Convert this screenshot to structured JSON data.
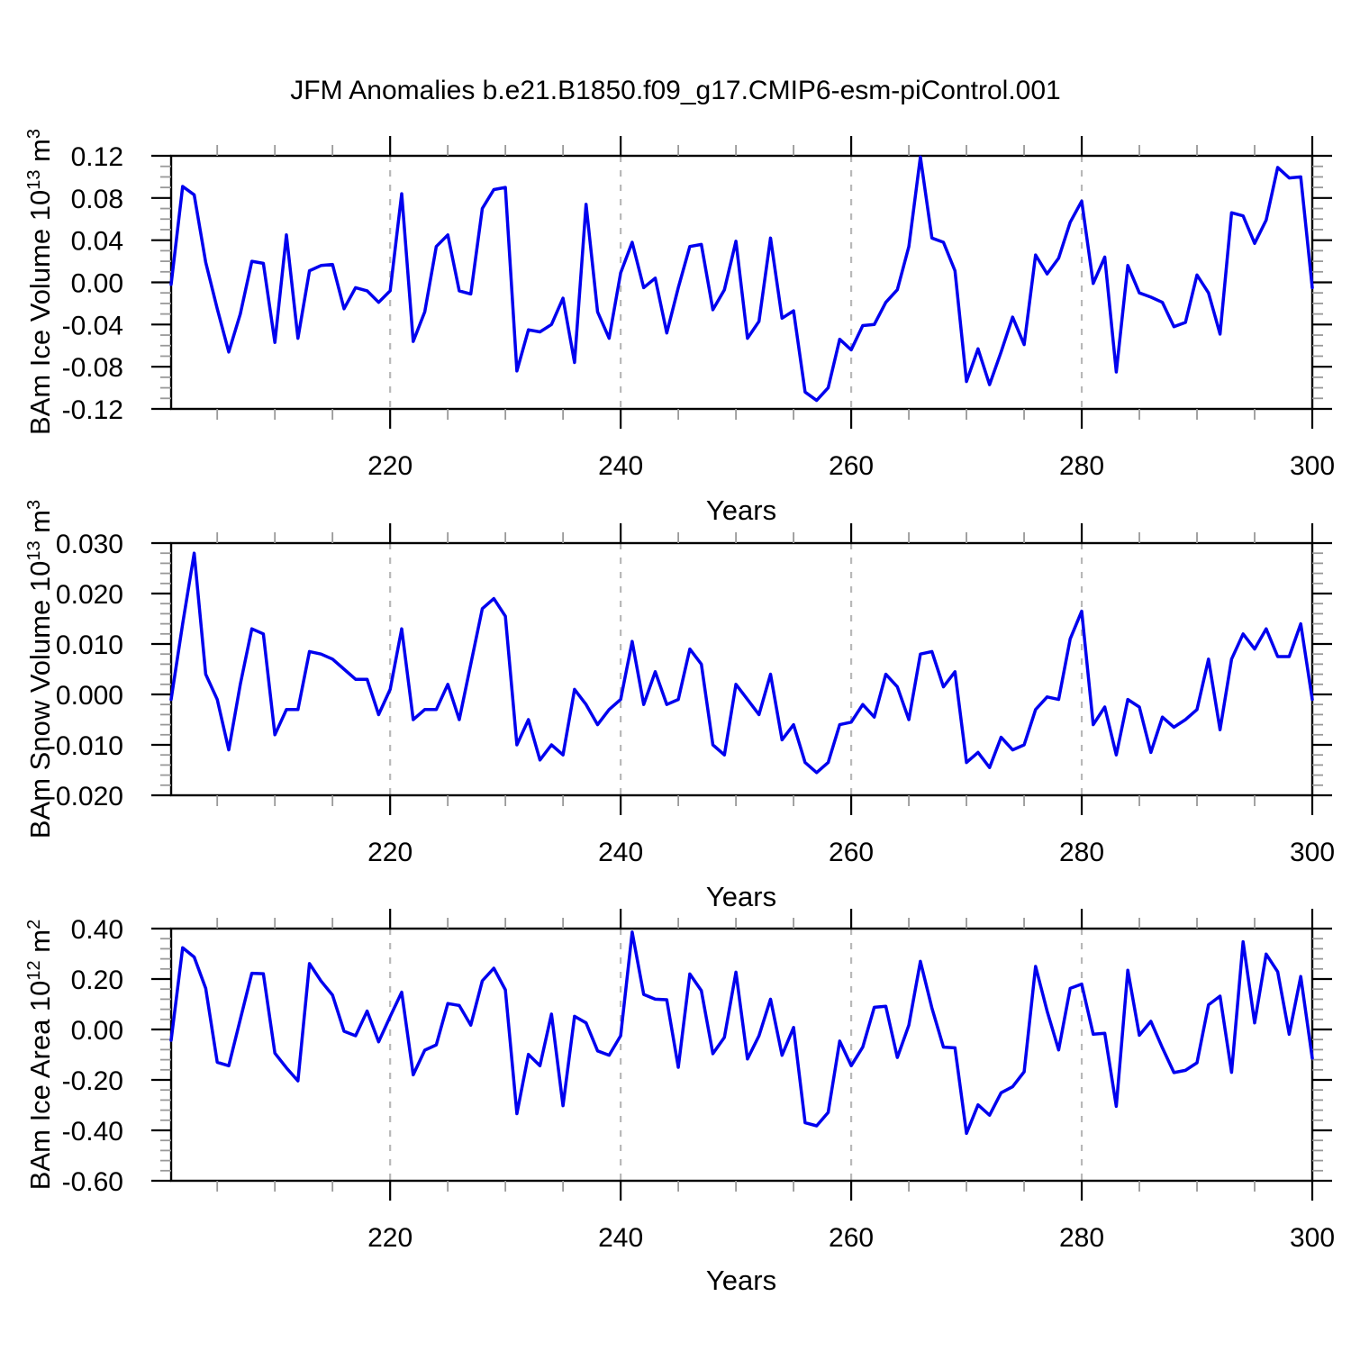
{
  "title": "JFM Anomalies b.e21.B1850.f09_g17.CMIP6-esm-piControl.001",
  "xlabel": "Years",
  "line_color": "#0000ee",
  "chart_data": [
    {
      "type": "line",
      "name": "BAm Ice Volume",
      "ylabel": {
        "prefix": "BAm Ice Volume 10",
        "exp": "13",
        "unit": " m",
        "unit_exp": "3"
      },
      "x_start": 201,
      "x_end": 300,
      "x_step": 1,
      "xticks": {
        "major": [
          220,
          240,
          260,
          280,
          300
        ],
        "labels": [
          "220",
          "240",
          "260",
          "280",
          "300"
        ],
        "minor_step": 5,
        "grid_years": [
          220,
          240,
          260,
          280
        ]
      },
      "ylim": [
        -0.12,
        0.12
      ],
      "yticks": {
        "major": [
          -0.12,
          -0.08,
          -0.04,
          0,
          0.04,
          0.08,
          0.12
        ],
        "labels": [
          "-0.12",
          "-0.08",
          "-0.04",
          "0.00",
          "0.04",
          "0.08",
          "0.12"
        ],
        "minor_step": 0.01
      },
      "values": [
        -0.002,
        0.091,
        0.083,
        0.019,
        -0.025,
        -0.066,
        -0.03,
        0.02,
        0.018,
        -0.057,
        0.045,
        -0.053,
        0.011,
        0.016,
        0.017,
        -0.025,
        -0.005,
        -0.008,
        -0.019,
        -0.008,
        0.084,
        -0.056,
        -0.028,
        0.034,
        0.045,
        -0.008,
        -0.011,
        0.07,
        0.088,
        0.09,
        -0.084,
        -0.045,
        -0.047,
        -0.04,
        -0.015,
        -0.076,
        0.074,
        -0.028,
        -0.053,
        0.009,
        0.038,
        -0.005,
        0.004,
        -0.048,
        -0.005,
        0.034,
        0.036,
        -0.026,
        -0.007,
        0.039,
        -0.053,
        -0.037,
        0.042,
        -0.034,
        -0.027,
        -0.104,
        -0.112,
        -0.1,
        -0.054,
        -0.064,
        -0.041,
        -0.04,
        -0.019,
        -0.007,
        0.034,
        0.119,
        0.042,
        0.038,
        0.011,
        -0.094,
        -0.063,
        -0.097,
        -0.066,
        -0.033,
        -0.059,
        0.026,
        0.008,
        0.023,
        0.057,
        0.077,
        -0.001,
        0.024,
        -0.085,
        0.016,
        -0.01,
        -0.014,
        -0.019,
        -0.042,
        -0.038,
        0.007,
        -0.01,
        -0.049,
        0.066,
        0.063,
        0.037,
        0.059,
        0.109,
        0.099,
        0.1,
        -0.005
      ]
    },
    {
      "type": "line",
      "name": "BAm Snow Volume",
      "ylabel": {
        "prefix": "BAm Snow Volume 10",
        "exp": "13",
        "unit": " m",
        "unit_exp": "3"
      },
      "x_start": 201,
      "x_end": 300,
      "x_step": 1,
      "xticks": {
        "major": [
          220,
          240,
          260,
          280,
          300
        ],
        "labels": [
          "220",
          "240",
          "260",
          "280",
          "300"
        ],
        "minor_step": 5,
        "grid_years": [
          220,
          240,
          260,
          280
        ]
      },
      "ylim": [
        -0.02,
        0.03
      ],
      "yticks": {
        "major": [
          -0.02,
          -0.01,
          0,
          0.01,
          0.02,
          0.03
        ],
        "labels": [
          "-0.020",
          "-0.010",
          "0.000",
          "0.010",
          "0.020",
          "0.030"
        ],
        "minor_step": 0.002
      },
      "values": [
        -0.001,
        0.014,
        0.028,
        0.004,
        -0.001,
        -0.011,
        0.002,
        0.013,
        0.012,
        -0.008,
        -0.003,
        -0.003,
        0.0085,
        0.008,
        0.007,
        0.005,
        0.003,
        0.003,
        -0.004,
        0.001,
        0.013,
        -0.005,
        -0.003,
        -0.003,
        0.002,
        -0.005,
        0.006,
        0.017,
        0.019,
        0.0155,
        -0.01,
        -0.005,
        -0.013,
        -0.01,
        -0.012,
        0.001,
        -0.002,
        -0.006,
        -0.003,
        -0.001,
        0.0105,
        -0.002,
        0.0045,
        -0.002,
        -0.001,
        0.009,
        0.006,
        -0.01,
        -0.012,
        0.002,
        -0.001,
        -0.004,
        0.004,
        -0.009,
        -0.006,
        -0.0135,
        -0.0155,
        -0.0135,
        -0.006,
        -0.0055,
        -0.002,
        -0.0045,
        0.004,
        0.0015,
        -0.005,
        0.008,
        0.0085,
        0.0015,
        0.0045,
        -0.0135,
        -0.0115,
        -0.0145,
        -0.0085,
        -0.011,
        -0.01,
        -0.003,
        -0.0005,
        -0.001,
        0.011,
        0.0165,
        -0.006,
        -0.0025,
        -0.012,
        -0.001,
        -0.0025,
        -0.0115,
        -0.0045,
        -0.0065,
        -0.005,
        -0.003,
        0.007,
        -0.007,
        0.007,
        0.012,
        0.009,
        0.013,
        0.0075,
        0.0075,
        0.014,
        -0.001
      ]
    },
    {
      "type": "line",
      "name": "BAm Ice Area",
      "ylabel": {
        "prefix": "BAm Ice Area 10",
        "exp": "12",
        "unit": " m",
        "unit_exp": "2"
      },
      "x_start": 201,
      "x_end": 300,
      "x_step": 1,
      "xticks": {
        "major": [
          220,
          240,
          260,
          280,
          300
        ],
        "labels": [
          "220",
          "240",
          "260",
          "280",
          "300"
        ],
        "minor_step": 5,
        "grid_years": [
          220,
          240,
          260,
          280
        ]
      },
      "ylim": [
        -0.6,
        0.4
      ],
      "yticks": {
        "major": [
          -0.6,
          -0.4,
          -0.2,
          0,
          0.2,
          0.4
        ],
        "labels": [
          "-0.60",
          "-0.40",
          "-0.20",
          "0.00",
          "0.20",
          "0.40"
        ],
        "minor_step": 0.04
      },
      "values": [
        -0.043,
        0.324,
        0.287,
        0.163,
        -0.13,
        -0.144,
        0.04,
        0.223,
        0.221,
        -0.094,
        -0.152,
        -0.204,
        0.261,
        0.192,
        0.136,
        -0.007,
        -0.025,
        0.073,
        -0.049,
        0.051,
        0.148,
        -0.18,
        -0.082,
        -0.061,
        0.103,
        0.095,
        0.017,
        0.193,
        0.243,
        0.157,
        -0.334,
        -0.099,
        -0.144,
        0.061,
        -0.302,
        0.052,
        0.026,
        -0.085,
        -0.102,
        -0.025,
        0.386,
        0.139,
        0.12,
        0.118,
        -0.15,
        0.22,
        0.154,
        -0.096,
        -0.031,
        0.227,
        -0.117,
        -0.025,
        0.12,
        -0.102,
        0.008,
        -0.37,
        -0.382,
        -0.329,
        -0.046,
        -0.144,
        -0.07,
        0.088,
        0.092,
        -0.111,
        0.017,
        0.27,
        0.085,
        -0.07,
        -0.073,
        -0.412,
        -0.299,
        -0.34,
        -0.251,
        -0.227,
        -0.168,
        0.25,
        0.073,
        -0.081,
        0.163,
        0.18,
        -0.019,
        -0.015,
        -0.305,
        0.235,
        -0.023,
        0.032,
        -0.073,
        -0.171,
        -0.162,
        -0.132,
        0.098,
        0.132,
        -0.17,
        0.348,
        0.026,
        0.299,
        0.229,
        -0.019,
        0.21,
        -0.114
      ]
    }
  ]
}
